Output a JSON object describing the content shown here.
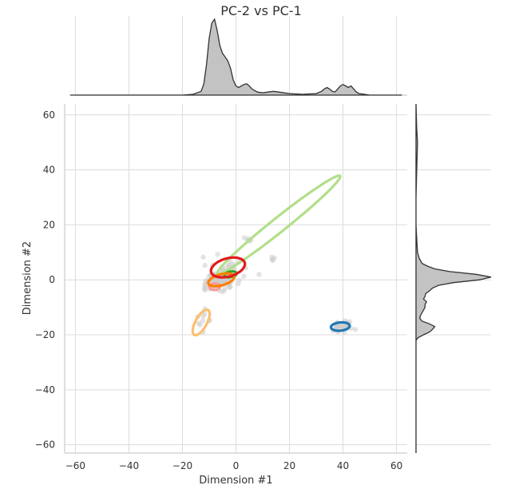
{
  "chart_data": {
    "type": "scatter",
    "title": "PC-2 vs PC-1",
    "xlabel": "Dimension #1",
    "ylabel": "Dimension #2",
    "xlim": [
      -64,
      64
    ],
    "ylim": [
      -63,
      64
    ],
    "x_ticks": [
      -60,
      -40,
      -20,
      0,
      20,
      40,
      60
    ],
    "y_ticks": [
      -60,
      -40,
      -20,
      0,
      20,
      40,
      60
    ],
    "x_tick_labels": [
      "−60",
      "−40",
      "−20",
      "0",
      "20",
      "40",
      "60"
    ],
    "y_tick_labels": [
      "−60",
      "−40",
      "−20",
      "0",
      "20",
      "40",
      "60"
    ],
    "grid": true,
    "colors": {
      "marginal_fill": "#c3c3c3",
      "marginal_line": "#333333",
      "scatter_points": "#cccccc",
      "grid": "#dcdcdc"
    },
    "contours": [
      {
        "color": "#b2df8a",
        "cx": 16,
        "cy": 20,
        "rx": 29,
        "ry": 2.6,
        "angle_deg": 37.8
      },
      {
        "color": "#fdbf6f",
        "cx": -13,
        "cy": -15.5,
        "rx": 5.2,
        "ry": 2.1,
        "angle_deg": 60
      },
      {
        "color": "#1f78b4",
        "cx": 39,
        "cy": -17,
        "rx": 3.5,
        "ry": 1.5,
        "angle_deg": 5
      },
      {
        "color": "#fb9a99",
        "cx": -8,
        "cy": -2.5,
        "rx": 2.0,
        "ry": 1.2,
        "angle_deg": 0
      },
      {
        "color": "#33a02c",
        "cx": -2,
        "cy": 2,
        "rx": 2.3,
        "ry": 1.0,
        "angle_deg": 10
      },
      {
        "color": "#ff7f00",
        "cx": -5.5,
        "cy": 0,
        "rx": 5.0,
        "ry": 2.0,
        "angle_deg": 15
      },
      {
        "color": "#e31a1c",
        "cx": -3,
        "cy": 4.5,
        "rx": 6.5,
        "ry": 3.3,
        "angle_deg": 15
      }
    ],
    "scatter_clusters": [
      {
        "x": -5,
        "y": 1,
        "sx": 3.5,
        "sy": 2.5,
        "n": 90
      },
      {
        "x": -10,
        "y": -2,
        "sx": 2.0,
        "sy": 1.5,
        "n": 25
      },
      {
        "x": 40,
        "y": -17,
        "sx": 2.5,
        "sy": 1.2,
        "n": 30
      },
      {
        "x": 5,
        "y": 15,
        "sx": 0.8,
        "sy": 0.8,
        "n": 5
      },
      {
        "x": 14,
        "y": 8,
        "sx": 0.6,
        "sy": 0.6,
        "n": 4
      },
      {
        "x": -12,
        "y": -15,
        "sx": 1.5,
        "sy": 2.5,
        "n": 10
      }
    ],
    "marginal_x_density": {
      "x": [
        -62,
        -20,
        -16,
        -13,
        -12,
        -11,
        -10,
        -9,
        -8,
        -7,
        -6,
        -5,
        -4,
        -3,
        -2,
        -1,
        0,
        1,
        2,
        3,
        4,
        5,
        6,
        8,
        10,
        12,
        14,
        16,
        18,
        20,
        25,
        30,
        32,
        33,
        34,
        35,
        36,
        37,
        38,
        39,
        40,
        41,
        42,
        43,
        44,
        45,
        46,
        48,
        50,
        62
      ],
      "y": [
        0,
        0,
        0.01,
        0.05,
        0.15,
        0.4,
        0.75,
        0.95,
        1.0,
        0.85,
        0.65,
        0.55,
        0.5,
        0.45,
        0.35,
        0.2,
        0.12,
        0.1,
        0.12,
        0.14,
        0.15,
        0.12,
        0.08,
        0.04,
        0.03,
        0.04,
        0.05,
        0.04,
        0.03,
        0.02,
        0.01,
        0.02,
        0.05,
        0.08,
        0.1,
        0.08,
        0.05,
        0.04,
        0.08,
        0.12,
        0.14,
        0.12,
        0.1,
        0.12,
        0.08,
        0.04,
        0.02,
        0.01,
        0,
        0
      ]
    },
    "marginal_y_density": {
      "y": [
        -63,
        -22,
        -21,
        -20,
        -19,
        -18,
        -17,
        -16,
        -15,
        -14,
        -13,
        -12,
        -11,
        -10,
        -9,
        -8,
        -7,
        -6,
        -5,
        -4,
        -3,
        -2,
        -1,
        0,
        1,
        2,
        3,
        4,
        5,
        6,
        8,
        10,
        15,
        20,
        30,
        40,
        50,
        55,
        64
      ],
      "d": [
        0,
        0,
        0.03,
        0.1,
        0.18,
        0.22,
        0.25,
        0.18,
        0.08,
        0.05,
        0.06,
        0.08,
        0.1,
        0.12,
        0.12,
        0.14,
        0.1,
        0.12,
        0.13,
        0.18,
        0.22,
        0.3,
        0.5,
        0.85,
        1.0,
        0.8,
        0.45,
        0.25,
        0.15,
        0.08,
        0.04,
        0.02,
        0.01,
        0,
        0,
        0.01,
        0.02,
        0.01,
        0
      ]
    }
  }
}
